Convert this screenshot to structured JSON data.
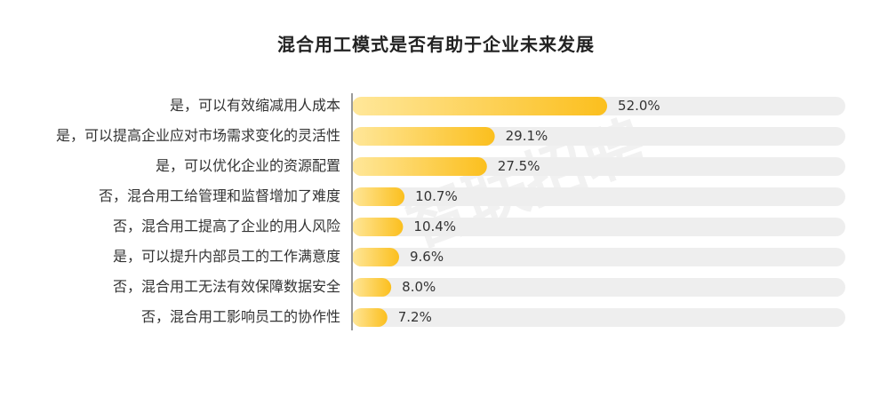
{
  "chart_data": {
    "type": "bar",
    "orientation": "horizontal",
    "title": "混合用工模式是否有助于企业未来发展",
    "categories": [
      "是，可以有效缩减用人成本",
      "是，可以提高企业应对市场需求变化的灵活性",
      "是，可以优化企业的资源配置",
      "否，混合用工给管理和监督增加了难度",
      "否，混合用工提高了企业的用人风险",
      "是，可以提升内部员工的工作满意度",
      "否，混合用工无法有效保障数据安全",
      "否，混合用工影响员工的协作性"
    ],
    "values": [
      52.0,
      29.1,
      27.5,
      10.7,
      10.4,
      9.6,
      8.0,
      7.2
    ],
    "value_labels": [
      "52.0%",
      "29.1%",
      "27.5%",
      "10.7%",
      "10.4%",
      "9.6%",
      "8.0%",
      "7.2%"
    ],
    "xlim": [
      0,
      100
    ],
    "grid": false,
    "colors": {
      "bar_start": "#FFE79A",
      "bar_end": "#FBBF1E",
      "track": "#EEEEEE",
      "axis": "#9A9A9A"
    },
    "watermark": "智联招聘"
  }
}
